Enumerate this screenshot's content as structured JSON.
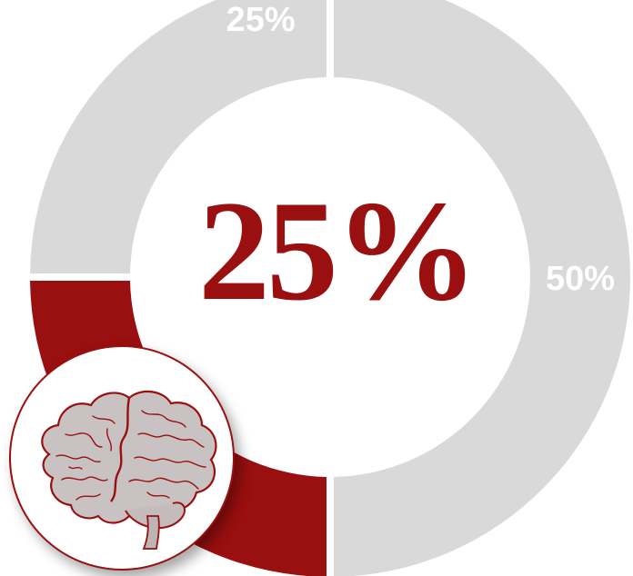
{
  "chart_data": {
    "type": "pie",
    "slices": [
      {
        "label": "50%",
        "value": 50,
        "color": "#d9d9d9"
      },
      {
        "label": "25%",
        "value": 25,
        "color": "#9a0f0f"
      },
      {
        "label": "25%",
        "value": 25,
        "color": "#d9d9d9"
      }
    ],
    "center_value": "25%",
    "accent_color": "#9a0f0f"
  },
  "icon": {
    "name": "brain-icon"
  }
}
